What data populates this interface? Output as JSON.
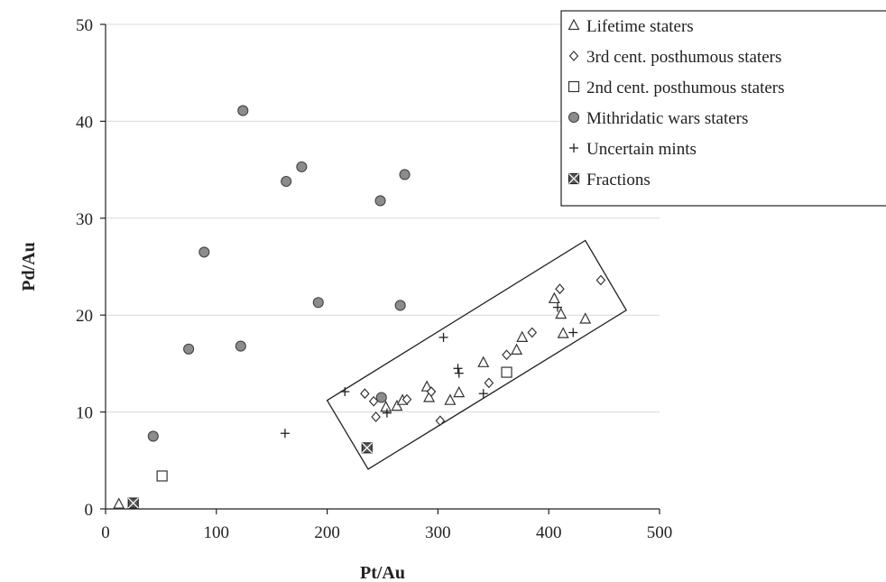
{
  "chart_data": {
    "type": "scatter",
    "title": "",
    "xlabel": "Pt/Au",
    "ylabel": "Pd/Au",
    "xlim": [
      0,
      500
    ],
    "ylim": [
      0,
      50
    ],
    "xticks": [
      "0",
      "100",
      "200",
      "300",
      "400",
      "500"
    ],
    "yticks": [
      "0",
      "10",
      "20",
      "30",
      "40",
      "50"
    ],
    "grid": "horizontal",
    "legend_position": "top-right",
    "series": [
      {
        "name": "Lifetime staters",
        "marker": "triangle",
        "points": [
          [
            12,
            0.5
          ],
          [
            253,
            10.5
          ],
          [
            263,
            10.6
          ],
          [
            268,
            11.2
          ],
          [
            290,
            12.6
          ],
          [
            292,
            11.5
          ],
          [
            311,
            11.2
          ],
          [
            319,
            12.0
          ],
          [
            341,
            15.1
          ],
          [
            371,
            16.4
          ],
          [
            376,
            17.7
          ],
          [
            405,
            21.7
          ],
          [
            411,
            20.1
          ],
          [
            413,
            18.1
          ],
          [
            433,
            19.6
          ]
        ]
      },
      {
        "name": "3rd cent. posthumous staters",
        "marker": "diamond",
        "points": [
          [
            234,
            11.9
          ],
          [
            242,
            11.1
          ],
          [
            244,
            9.5
          ],
          [
            272,
            11.3
          ],
          [
            294,
            12.1
          ],
          [
            302,
            9.1
          ],
          [
            346,
            13.0
          ],
          [
            362,
            15.9
          ],
          [
            385,
            18.2
          ],
          [
            410,
            22.7
          ],
          [
            447,
            23.6
          ]
        ]
      },
      {
        "name": "2nd cent. posthumous staters",
        "marker": "square",
        "points": [
          [
            51,
            3.4
          ],
          [
            362,
            14.1
          ]
        ]
      },
      {
        "name": "Mithridatic wars staters",
        "marker": "circle",
        "points": [
          [
            43,
            7.5
          ],
          [
            75,
            16.5
          ],
          [
            89,
            26.5
          ],
          [
            122,
            16.8
          ],
          [
            124,
            41.1
          ],
          [
            163,
            33.8
          ],
          [
            177,
            35.3
          ],
          [
            192,
            21.3
          ],
          [
            248,
            31.8
          ],
          [
            249,
            11.5
          ],
          [
            266,
            21.0
          ],
          [
            270,
            34.5
          ]
        ]
      },
      {
        "name": "Uncertain mints",
        "marker": "plus",
        "points": [
          [
            162,
            7.8
          ],
          [
            216,
            12.1
          ],
          [
            254,
            9.9
          ],
          [
            305,
            17.7
          ],
          [
            318,
            14.5
          ],
          [
            319,
            14.0
          ],
          [
            341,
            11.9
          ],
          [
            408,
            20.8
          ],
          [
            422,
            18.2
          ]
        ]
      },
      {
        "name": "Fractions",
        "marker": "crossed-square",
        "points": [
          [
            25,
            0.6
          ],
          [
            236,
            6.3
          ]
        ]
      }
    ],
    "annotations": [
      {
        "type": "rectangle-outline",
        "corners": [
          [
            200,
            11.2
          ],
          [
            433,
            27.7
          ],
          [
            470,
            20.5
          ],
          [
            237,
            4.1
          ]
        ]
      }
    ]
  }
}
